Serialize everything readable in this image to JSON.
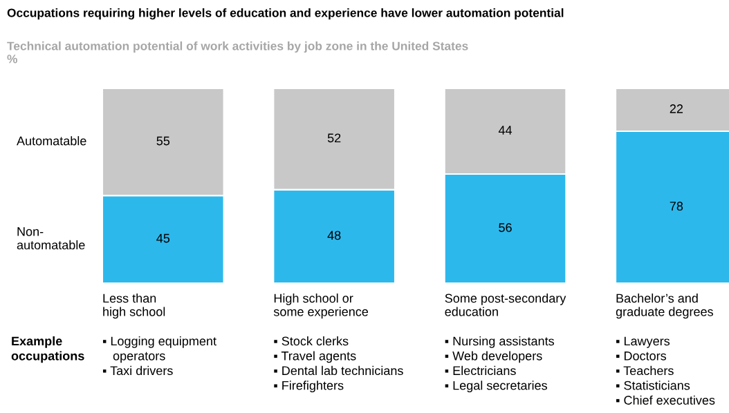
{
  "chart_data": {
    "type": "bar",
    "stacked": true,
    "data_labels": true,
    "title": "Occupations requiring higher levels of education and experience have lower automation potential",
    "subtitle": "Technical automation potential of work activities by job zone in the United States\n%",
    "categories": [
      "Less than\nhigh school",
      "High school or\nsome experience",
      "Some post-secondary\neducation",
      "Bachelor’s and\ngraduate degrees"
    ],
    "series": [
      {
        "name": "Non-\nautomatable",
        "color": "#2db8ec",
        "values": [
          45,
          48,
          56,
          78
        ]
      },
      {
        "name": "Automatable",
        "color": "#c8c8c8",
        "values": [
          55,
          52,
          44,
          22
        ]
      }
    ],
    "annotations": [
      "Example\noccupations",
      "▪ Logging equipment\n   operators\n▪ Taxi drivers",
      "▪ Stock clerks\n▪ Travel agents\n▪ Dental lab technicians\n▪ Firefighters",
      "▪ Nursing assistants\n▪ Web developers\n▪ Electricians\n▪ Legal secretaries",
      "▪ Lawyers\n▪ Doctors\n▪ Teachers\n▪ Statisticians\n▪ Chief executives"
    ]
  }
}
